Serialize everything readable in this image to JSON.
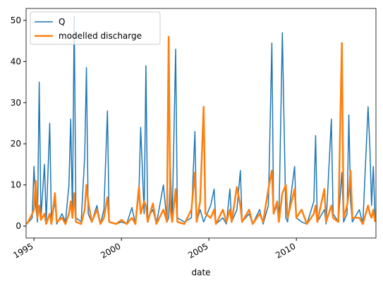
{
  "chart_data": {
    "type": "line",
    "x_label": "date",
    "x": [
      1994.6,
      1994.9,
      1995.0,
      1995.1,
      1995.2,
      1995.3,
      1995.4,
      1995.6,
      1995.7,
      1995.9,
      1996.0,
      1996.2,
      1996.3,
      1996.6,
      1996.8,
      1997.0,
      1997.1,
      1997.2,
      1997.3,
      1997.4,
      1997.7,
      1997.9,
      1998.0,
      1998.1,
      1998.3,
      1998.6,
      1998.8,
      1999.0,
      1999.2,
      1999.3,
      1999.7,
      2000.0,
      2000.3,
      2000.6,
      2000.8,
      2001.0,
      2001.1,
      2001.3,
      2001.4,
      2001.5,
      2001.8,
      2002.0,
      2002.4,
      2002.6,
      2002.7,
      2002.8,
      2002.9,
      2003.1,
      2003.2,
      2003.6,
      2004.0,
      2004.2,
      2004.3,
      2004.5,
      2004.7,
      2004.8,
      2005.1,
      2005.3,
      2005.4,
      2005.8,
      2006.0,
      2006.2,
      2006.3,
      2006.6,
      2006.8,
      2006.9,
      2007.3,
      2007.5,
      2007.9,
      2008.1,
      2008.4,
      2008.6,
      2008.7,
      2008.9,
      2009.0,
      2009.2,
      2009.4,
      2009.5,
      2009.9,
      2010.0,
      2010.3,
      2010.6,
      2011.0,
      2011.1,
      2011.2,
      2011.6,
      2011.7,
      2012.0,
      2012.1,
      2012.4,
      2012.6,
      2012.7,
      2012.9,
      2013.0,
      2013.1,
      2013.2,
      2013.6,
      2013.8,
      2014.1,
      2014.2,
      2014.3,
      2014.4,
      2014.5
    ],
    "series": [
      {
        "name": "Q",
        "color": "#1f77b4",
        "values": [
          0.5,
          2,
          14.5,
          5,
          1,
          35,
          2,
          15,
          1,
          25,
          1,
          6,
          0.5,
          3,
          1,
          10,
          26,
          3,
          51,
          2,
          1,
          17,
          38.5,
          3,
          1,
          5,
          0.5,
          4,
          28,
          1,
          0.5,
          1,
          0.5,
          4.5,
          0.5,
          8,
          24,
          3,
          39,
          2,
          4,
          0.5,
          10,
          1,
          2,
          14,
          1,
          43,
          2,
          1,
          2,
          23,
          1,
          4,
          1,
          2,
          5,
          9,
          0.5,
          2,
          0.5,
          9,
          1,
          4,
          13.5,
          1,
          3,
          0.5,
          4,
          0.5,
          5,
          44.5,
          3,
          5,
          1,
          47,
          2,
          1,
          14.5,
          2,
          1,
          0.5,
          6,
          22,
          1,
          4,
          0.5,
          26,
          3,
          1,
          13,
          1,
          3,
          27,
          6,
          1,
          4,
          0.5,
          29,
          19.5,
          5,
          14.5,
          2
        ]
      },
      {
        "name": "modelled discharge",
        "color": "#ff7f0e",
        "values": [
          0.5,
          3,
          4,
          11,
          2,
          5,
          1.5,
          3,
          0.5,
          3,
          0.5,
          8,
          1,
          2,
          0.5,
          3,
          6,
          2,
          8,
          1,
          0.5,
          4,
          10,
          6,
          1,
          4,
          0.5,
          2,
          7,
          1,
          0.5,
          1.5,
          0.5,
          2,
          0.5,
          9.5,
          3,
          6,
          5,
          1,
          5.5,
          0.5,
          4,
          1,
          46,
          4,
          1,
          9,
          1,
          0.5,
          4,
          13,
          1,
          6,
          29,
          3,
          2,
          4,
          0.5,
          4,
          1,
          4,
          1,
          9.5,
          5,
          1,
          4,
          0.5,
          3,
          1,
          9,
          13.5,
          3,
          6,
          1,
          8,
          10,
          2,
          9,
          2,
          4,
          0.5,
          3,
          5,
          1,
          9,
          1,
          5,
          2,
          1,
          44.5,
          2,
          5,
          8,
          13.5,
          2,
          2,
          0.5,
          5,
          3,
          2,
          4,
          1
        ]
      }
    ],
    "xlim": [
      1994.55,
      2014.55
    ],
    "xticks": [
      1995,
      2000,
      2005,
      2010
    ],
    "ylim": [
      -2.9,
      52.9
    ],
    "yticks": [
      0,
      10,
      20,
      30,
      40,
      50
    ],
    "legend": "upper left"
  }
}
